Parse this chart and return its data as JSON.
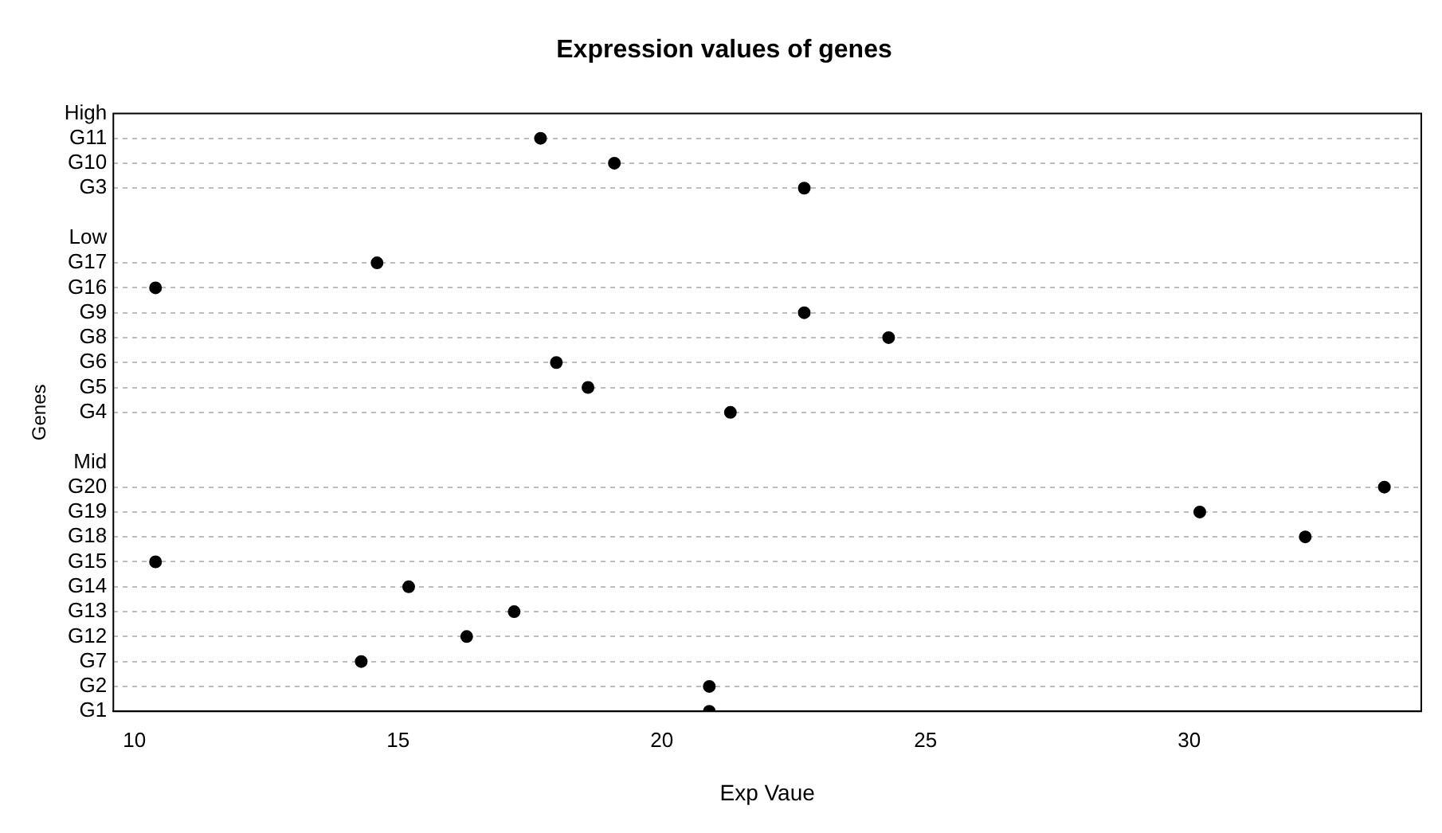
{
  "chart_data": {
    "type": "scatter",
    "orientation": "horizontal",
    "title": "Expression values of genes",
    "xlabel": "Exp Vaue",
    "ylabel": "Genes",
    "categories": [
      "High",
      "G11",
      "G10",
      "G3",
      null,
      "Low",
      "G17",
      "G16",
      "G9",
      "G8",
      "G6",
      "G5",
      "G4",
      null,
      "Mid",
      "G20",
      "G19",
      "G18",
      "G15",
      "G14",
      "G13",
      "G12",
      "G7",
      "G2",
      "G1"
    ],
    "values": [
      null,
      17.7,
      19.1,
      22.7,
      null,
      null,
      14.6,
      10.4,
      22.7,
      24.3,
      18.0,
      18.6,
      21.3,
      null,
      null,
      33.7,
      30.2,
      32.2,
      10.4,
      15.2,
      17.2,
      16.3,
      14.3,
      20.9,
      20.9
    ],
    "color": "#000000",
    "marker": "circle",
    "grid": "y",
    "legend": false,
    "xlim": [
      9.6,
      34.4
    ],
    "xticks": [
      10,
      15,
      20,
      25,
      30
    ]
  }
}
